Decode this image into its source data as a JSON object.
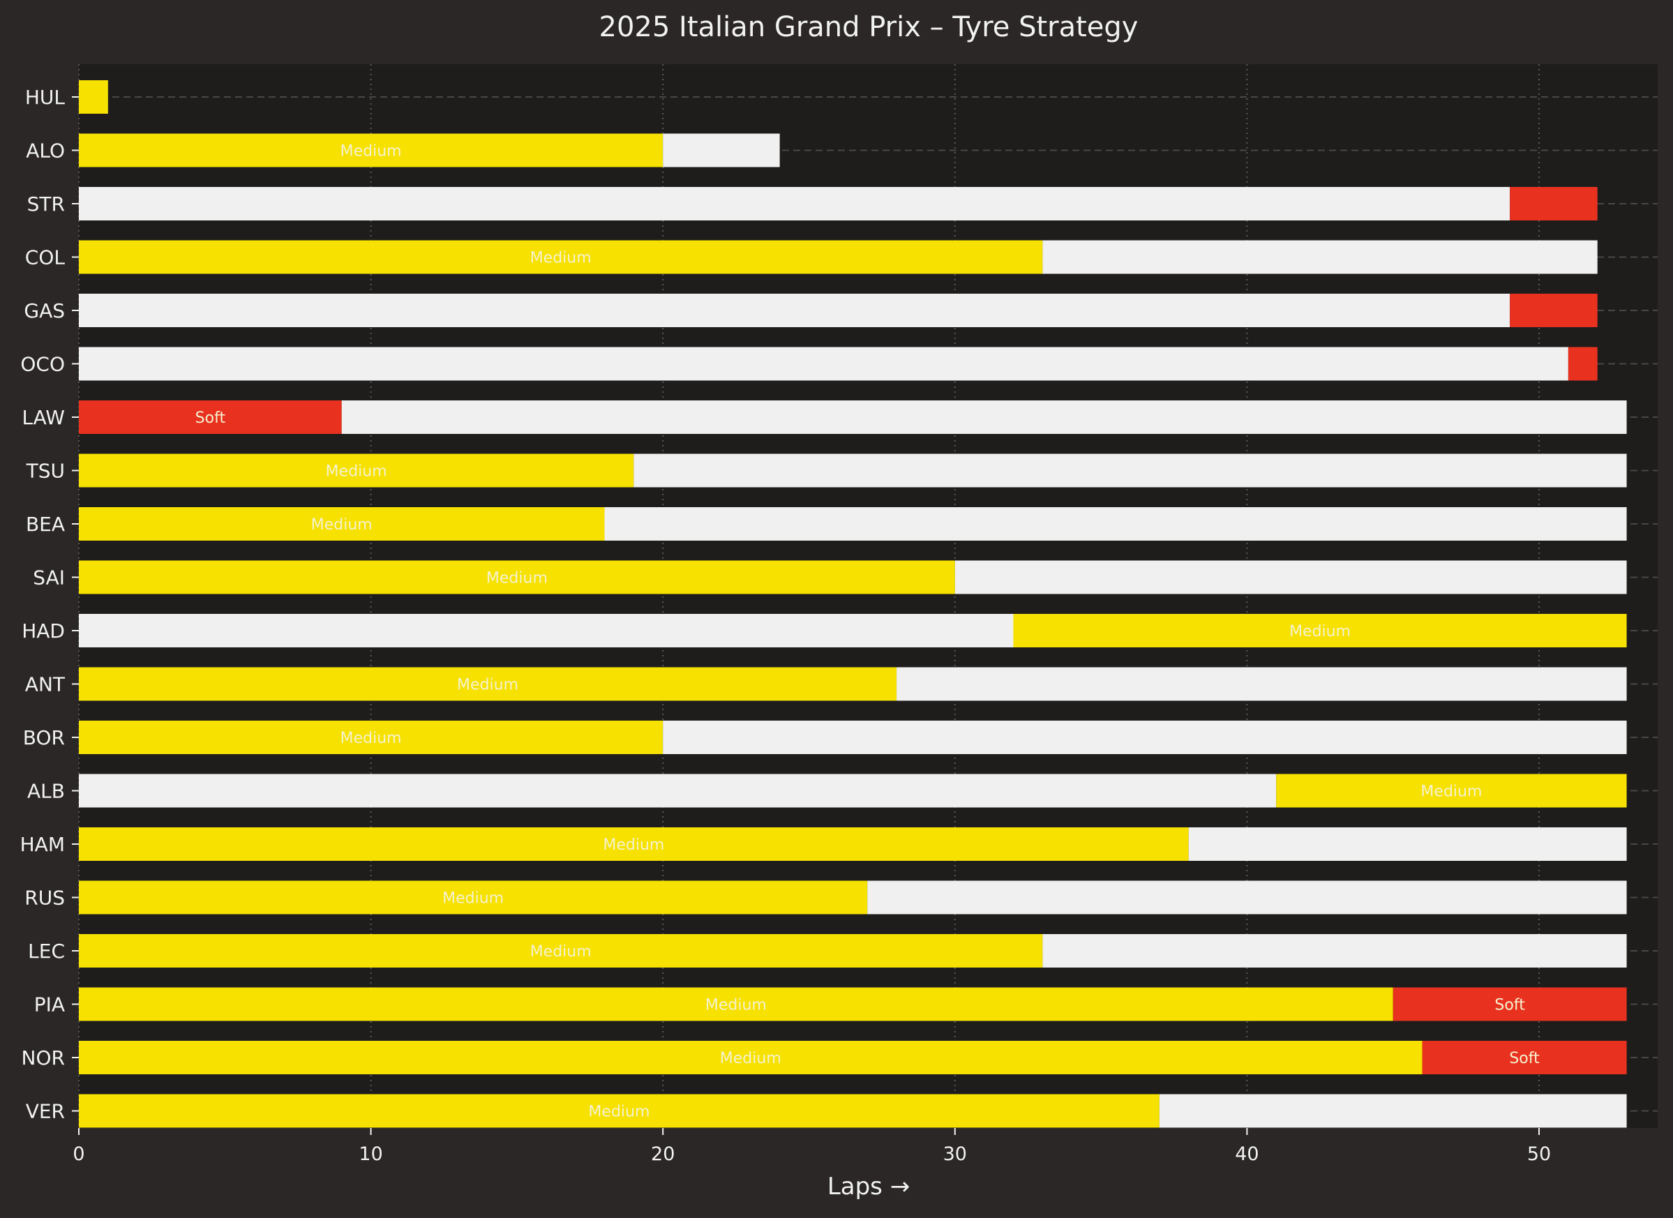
{
  "chart_data": {
    "type": "bar",
    "orientation": "horizontal-stacked",
    "title": "2025 Italian Grand Prix – Tyre Strategy",
    "xlabel": "Laps →",
    "ylabel": "",
    "xlim": [
      0,
      54
    ],
    "xticks": [
      0,
      10,
      20,
      30,
      40,
      50
    ],
    "grid": true,
    "compound_colors": {
      "Medium": "#f6e100",
      "Hard": "#f0f0f0",
      "Soft": "#e8321f"
    },
    "stint_label_color": "#f5f2d0",
    "drivers": [
      {
        "name": "HUL",
        "stints": [
          {
            "compound": "Medium",
            "start": 0,
            "end": 1,
            "label": ""
          }
        ]
      },
      {
        "name": "ALO",
        "stints": [
          {
            "compound": "Medium",
            "start": 0,
            "end": 20,
            "label": "Medium"
          },
          {
            "compound": "Hard",
            "start": 20,
            "end": 24,
            "label": ""
          }
        ]
      },
      {
        "name": "STR",
        "stints": [
          {
            "compound": "Hard",
            "start": 0,
            "end": 49,
            "label": ""
          },
          {
            "compound": "Soft",
            "start": 49,
            "end": 52,
            "label": ""
          }
        ]
      },
      {
        "name": "COL",
        "stints": [
          {
            "compound": "Medium",
            "start": 0,
            "end": 33,
            "label": "Medium"
          },
          {
            "compound": "Hard",
            "start": 33,
            "end": 52,
            "label": ""
          }
        ]
      },
      {
        "name": "GAS",
        "stints": [
          {
            "compound": "Hard",
            "start": 0,
            "end": 49,
            "label": ""
          },
          {
            "compound": "Soft",
            "start": 49,
            "end": 52,
            "label": ""
          }
        ]
      },
      {
        "name": "OCO",
        "stints": [
          {
            "compound": "Hard",
            "start": 0,
            "end": 51,
            "label": ""
          },
          {
            "compound": "Soft",
            "start": 51,
            "end": 52,
            "label": ""
          }
        ]
      },
      {
        "name": "LAW",
        "stints": [
          {
            "compound": "Soft",
            "start": 0,
            "end": 9,
            "label": "Soft"
          },
          {
            "compound": "Hard",
            "start": 9,
            "end": 53,
            "label": ""
          }
        ]
      },
      {
        "name": "TSU",
        "stints": [
          {
            "compound": "Medium",
            "start": 0,
            "end": 19,
            "label": "Medium"
          },
          {
            "compound": "Hard",
            "start": 19,
            "end": 53,
            "label": ""
          }
        ]
      },
      {
        "name": "BEA",
        "stints": [
          {
            "compound": "Medium",
            "start": 0,
            "end": 18,
            "label": "Medium"
          },
          {
            "compound": "Hard",
            "start": 18,
            "end": 53,
            "label": ""
          }
        ]
      },
      {
        "name": "SAI",
        "stints": [
          {
            "compound": "Medium",
            "start": 0,
            "end": 30,
            "label": "Medium"
          },
          {
            "compound": "Hard",
            "start": 30,
            "end": 53,
            "label": ""
          }
        ]
      },
      {
        "name": "HAD",
        "stints": [
          {
            "compound": "Hard",
            "start": 0,
            "end": 32,
            "label": ""
          },
          {
            "compound": "Medium",
            "start": 32,
            "end": 53,
            "label": "Medium"
          }
        ]
      },
      {
        "name": "ANT",
        "stints": [
          {
            "compound": "Medium",
            "start": 0,
            "end": 28,
            "label": "Medium"
          },
          {
            "compound": "Hard",
            "start": 28,
            "end": 53,
            "label": ""
          }
        ]
      },
      {
        "name": "BOR",
        "stints": [
          {
            "compound": "Medium",
            "start": 0,
            "end": 20,
            "label": "Medium"
          },
          {
            "compound": "Hard",
            "start": 20,
            "end": 53,
            "label": ""
          }
        ]
      },
      {
        "name": "ALB",
        "stints": [
          {
            "compound": "Hard",
            "start": 0,
            "end": 41,
            "label": ""
          },
          {
            "compound": "Medium",
            "start": 41,
            "end": 53,
            "label": "Medium"
          }
        ]
      },
      {
        "name": "HAM",
        "stints": [
          {
            "compound": "Medium",
            "start": 0,
            "end": 38,
            "label": "Medium"
          },
          {
            "compound": "Hard",
            "start": 38,
            "end": 53,
            "label": ""
          }
        ]
      },
      {
        "name": "RUS",
        "stints": [
          {
            "compound": "Medium",
            "start": 0,
            "end": 27,
            "label": "Medium"
          },
          {
            "compound": "Hard",
            "start": 27,
            "end": 53,
            "label": ""
          }
        ]
      },
      {
        "name": "LEC",
        "stints": [
          {
            "compound": "Medium",
            "start": 0,
            "end": 33,
            "label": "Medium"
          },
          {
            "compound": "Hard",
            "start": 33,
            "end": 53,
            "label": ""
          }
        ]
      },
      {
        "name": "PIA",
        "stints": [
          {
            "compound": "Medium",
            "start": 0,
            "end": 45,
            "label": "Medium"
          },
          {
            "compound": "Soft",
            "start": 45,
            "end": 53,
            "label": "Soft"
          }
        ]
      },
      {
        "name": "NOR",
        "stints": [
          {
            "compound": "Medium",
            "start": 0,
            "end": 46,
            "label": "Medium"
          },
          {
            "compound": "Soft",
            "start": 46,
            "end": 53,
            "label": "Soft"
          }
        ]
      },
      {
        "name": "VER",
        "stints": [
          {
            "compound": "Medium",
            "start": 0,
            "end": 37,
            "label": "Medium"
          },
          {
            "compound": "Hard",
            "start": 37,
            "end": 53,
            "label": ""
          }
        ]
      }
    ]
  }
}
